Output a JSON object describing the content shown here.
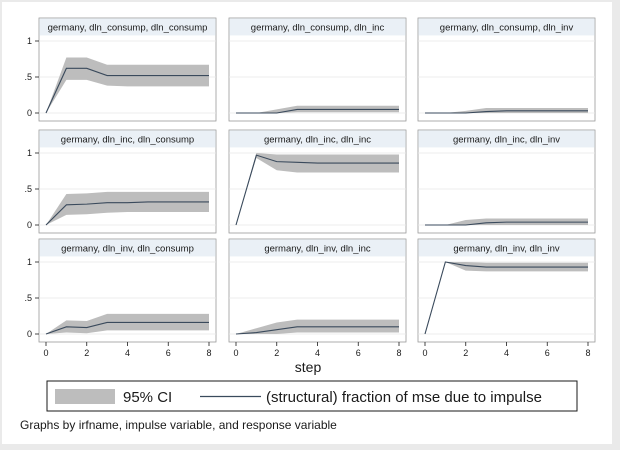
{
  "note": "Graphs by irfname, impulse variable, and response variable",
  "chart_data": {
    "type": "line",
    "xlabel": "step",
    "x_ticks": [
      0,
      2,
      4,
      6,
      8
    ],
    "y_ticks": [
      0,
      0.5,
      1
    ],
    "y_tick_labels": [
      "0",
      ".5",
      "1"
    ],
    "ylim": [
      0,
      1
    ],
    "xlim": [
      0,
      8
    ],
    "legend": {
      "placement": "bottom",
      "ci_label": "95% CI",
      "line_label": "(structural) fraction of mse due to impulse"
    },
    "colors": {
      "band": "#bdbdbd",
      "line": "#3a4a5c",
      "grid": "#e8e8e8"
    },
    "steps": [
      0,
      1,
      2,
      3,
      4,
      5,
      6,
      7,
      8
    ],
    "panels": [
      {
        "title": "germany, dln_consump, dln_consump",
        "values": [
          0,
          0.62,
          0.62,
          0.52,
          0.52,
          0.52,
          0.52,
          0.52,
          0.52
        ],
        "lower": [
          0,
          0.46,
          0.46,
          0.38,
          0.37,
          0.37,
          0.37,
          0.37,
          0.37
        ],
        "upper": [
          0,
          0.77,
          0.77,
          0.67,
          0.67,
          0.67,
          0.67,
          0.67,
          0.67
        ]
      },
      {
        "title": "germany, dln_consump, dln_inc",
        "values": [
          0,
          0,
          0,
          0.05,
          0.05,
          0.05,
          0.05,
          0.05,
          0.05
        ],
        "lower": [
          0,
          0,
          0,
          0.01,
          0.01,
          0.01,
          0.01,
          0.01,
          0.01
        ],
        "upper": [
          0,
          0,
          0.05,
          0.1,
          0.1,
          0.1,
          0.1,
          0.1,
          0.1
        ]
      },
      {
        "title": "germany, dln_consump, dln_inv",
        "values": [
          0,
          0,
          0,
          0.02,
          0.03,
          0.03,
          0.03,
          0.03,
          0.03
        ],
        "lower": [
          0,
          0,
          0,
          0,
          0,
          0,
          0,
          0,
          0
        ],
        "upper": [
          0,
          0,
          0.03,
          0.07,
          0.07,
          0.07,
          0.07,
          0.07,
          0.07
        ]
      },
      {
        "title": "germany, dln_inc, dln_consump",
        "values": [
          0,
          0.28,
          0.29,
          0.31,
          0.31,
          0.32,
          0.32,
          0.32,
          0.32
        ],
        "lower": [
          0,
          0.14,
          0.15,
          0.17,
          0.18,
          0.18,
          0.18,
          0.18,
          0.18
        ],
        "upper": [
          0,
          0.43,
          0.44,
          0.46,
          0.46,
          0.46,
          0.46,
          0.46,
          0.46
        ]
      },
      {
        "title": "germany, dln_inc, dln_inc",
        "values": [
          0,
          0.97,
          0.88,
          0.87,
          0.86,
          0.86,
          0.86,
          0.86,
          0.86
        ],
        "lower": [
          0,
          0.93,
          0.76,
          0.73,
          0.73,
          0.73,
          0.73,
          0.73,
          0.73
        ],
        "upper": [
          0,
          1.0,
          0.98,
          0.98,
          0.98,
          0.98,
          0.98,
          0.98,
          0.98
        ]
      },
      {
        "title": "germany, dln_inc, dln_inv",
        "values": [
          0,
          0,
          0,
          0.03,
          0.04,
          0.04,
          0.04,
          0.04,
          0.04
        ],
        "lower": [
          0,
          0,
          0,
          0,
          0,
          0,
          0,
          0,
          0
        ],
        "upper": [
          0,
          0,
          0.07,
          0.09,
          0.09,
          0.09,
          0.09,
          0.09,
          0.09
        ]
      },
      {
        "title": "germany, dln_inv, dln_consump",
        "values": [
          0,
          0.1,
          0.09,
          0.16,
          0.16,
          0.16,
          0.16,
          0.16,
          0.16
        ],
        "lower": [
          0,
          0.02,
          0.01,
          0.05,
          0.05,
          0.05,
          0.05,
          0.05,
          0.05
        ],
        "upper": [
          0,
          0.19,
          0.18,
          0.28,
          0.28,
          0.28,
          0.28,
          0.28,
          0.28
        ]
      },
      {
        "title": "germany, dln_inv, dln_inc",
        "values": [
          0,
          0.02,
          0.06,
          0.1,
          0.1,
          0.1,
          0.1,
          0.1,
          0.1
        ],
        "lower": [
          0,
          0,
          0,
          0.02,
          0.02,
          0.02,
          0.02,
          0.02,
          0.02
        ],
        "upper": [
          0,
          0.08,
          0.16,
          0.2,
          0.2,
          0.2,
          0.2,
          0.2,
          0.2
        ]
      },
      {
        "title": "germany, dln_inv, dln_inv",
        "values": [
          0,
          1.0,
          0.95,
          0.93,
          0.93,
          0.93,
          0.93,
          0.93,
          0.93
        ],
        "lower": [
          0,
          1.0,
          0.88,
          0.87,
          0.87,
          0.87,
          0.87,
          0.87,
          0.87
        ],
        "upper": [
          0,
          1.0,
          1.0,
          0.99,
          0.99,
          0.99,
          0.99,
          0.99,
          0.99
        ]
      }
    ]
  }
}
